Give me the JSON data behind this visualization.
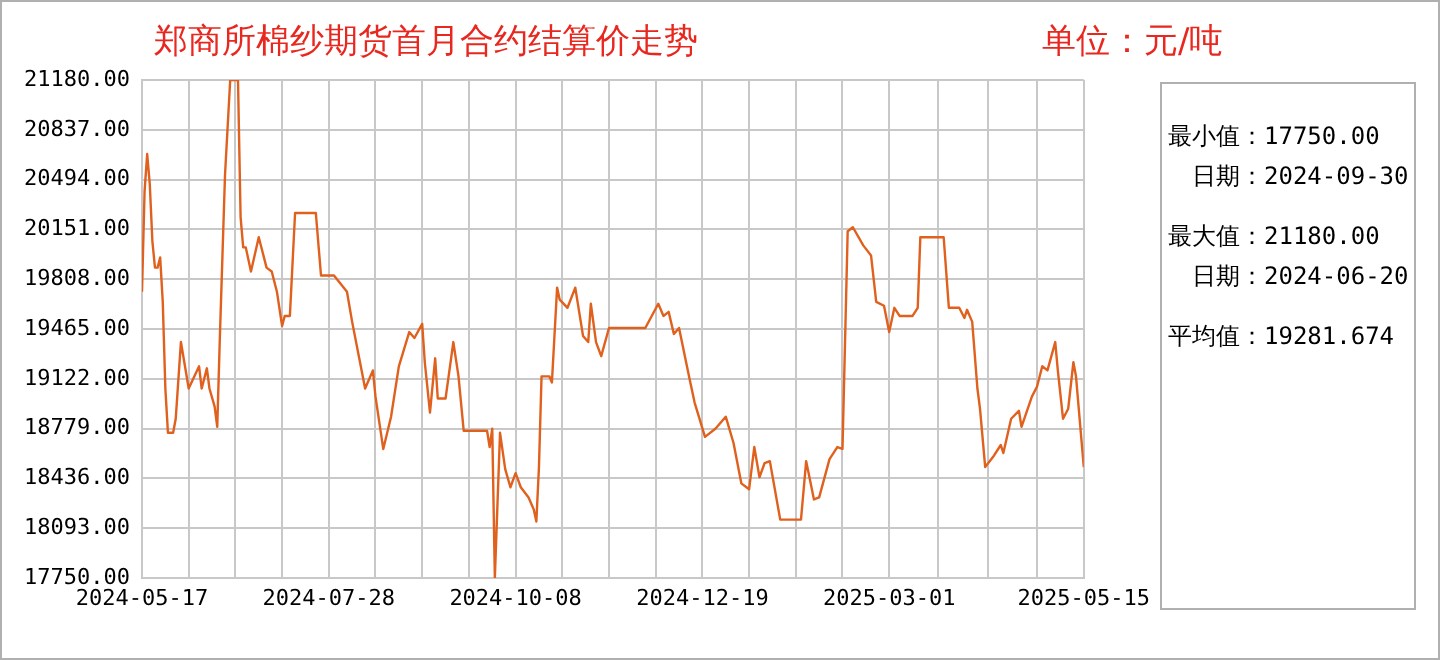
{
  "chart_data": {
    "type": "line",
    "title": "郑商所棉纱期货首月合约结算价走势",
    "subtitle": "单位：元/吨",
    "annotations": [
      "最小值：17750.00",
      "日期：2024-09-30",
      "最大值：21180.00",
      "日期：2024-06-20",
      "平均值：19281.674"
    ],
    "x": [
      "2024-05-17",
      "2024-05-18",
      "2024-05-19",
      "2024-05-20",
      "2024-05-21",
      "2024-05-22",
      "2024-05-23",
      "2024-05-24",
      "2024-05-25",
      "2024-05-26",
      "2024-05-27",
      "2024-05-29",
      "2024-05-30",
      "2024-06-01",
      "2024-06-04",
      "2024-06-08",
      "2024-06-09",
      "2024-06-11",
      "2024-06-12",
      "2024-06-14",
      "2024-06-15",
      "2024-06-16",
      "2024-06-18",
      "2024-06-20",
      "2024-06-23",
      "2024-06-24",
      "2024-06-25",
      "2024-06-26",
      "2024-06-28",
      "2024-07-01",
      "2024-07-03",
      "2024-07-04",
      "2024-07-06",
      "2024-07-08",
      "2024-07-10",
      "2024-07-11",
      "2024-07-13",
      "2024-07-15",
      "2024-07-23",
      "2024-07-25",
      "2024-07-30",
      "2024-08-04",
      "2024-08-06",
      "2024-08-11",
      "2024-08-14",
      "2024-08-15",
      "2024-08-18",
      "2024-08-21",
      "2024-08-24",
      "2024-08-28",
      "2024-08-30",
      "2024-09-02",
      "2024-09-03",
      "2024-09-05",
      "2024-09-07",
      "2024-09-08",
      "2024-09-11",
      "2024-09-14",
      "2024-09-16",
      "2024-09-18",
      "2024-09-27",
      "2024-09-28",
      "2024-09-29",
      "2024-09-30",
      "2024-10-02",
      "2024-10-04",
      "2024-10-06",
      "2024-10-08",
      "2024-10-10",
      "2024-10-13",
      "2024-10-15",
      "2024-10-16",
      "2024-10-17",
      "2024-10-18",
      "2024-10-21",
      "2024-10-22",
      "2024-10-24",
      "2024-10-25",
      "2024-10-28",
      "2024-10-31",
      "2024-11-03",
      "2024-11-05",
      "2024-11-06",
      "2024-11-08",
      "2024-11-10",
      "2024-11-13",
      "2024-11-27",
      "2024-12-02",
      "2024-12-04",
      "2024-12-06",
      "2024-12-08",
      "2024-12-10",
      "2024-12-14",
      "2024-12-16",
      "2024-12-20",
      "2024-12-24",
      "2024-12-28",
      "2024-12-31",
      "2025-01-03",
      "2025-01-06",
      "2025-01-08",
      "2025-01-10",
      "2025-01-12",
      "2025-01-14",
      "2025-01-18",
      "2025-01-26",
      "2025-01-28",
      "2025-01-31",
      "2025-02-02",
      "2025-02-06",
      "2025-02-09",
      "2025-02-11",
      "2025-02-13",
      "2025-02-15",
      "2025-02-19",
      "2025-02-22",
      "2025-02-24",
      "2025-02-27",
      "2025-03-01",
      "2025-03-03",
      "2025-03-05",
      "2025-03-10",
      "2025-03-12",
      "2025-03-13",
      "2025-03-22",
      "2025-03-24",
      "2025-03-28",
      "2025-03-30",
      "2025-03-31",
      "2025-04-02",
      "2025-04-04",
      "2025-04-05",
      "2025-04-07",
      "2025-04-10",
      "2025-04-13",
      "2025-04-14",
      "2025-04-17",
      "2025-04-20",
      "2025-04-21",
      "2025-04-25",
      "2025-04-27",
      "2025-04-29",
      "2025-05-01",
      "2025-05-04",
      "2025-05-05",
      "2025-05-07",
      "2025-05-09",
      "2025-05-11",
      "2025-05-12",
      "2025-05-14",
      "2025-05-15"
    ],
    "series": [
      {
        "color": "#e0601e",
        "values": [
          19722,
          20416,
          20670,
          20462,
          20069,
          19888,
          19888,
          19958,
          19652,
          19055,
          18750,
          18750,
          18847,
          19375,
          19055,
          19208,
          19055,
          19194,
          19055,
          18930,
          18791,
          19403,
          20527,
          21180,
          21180,
          20236,
          20027,
          20027,
          19861,
          20097,
          19958,
          19888,
          19861,
          19722,
          19486,
          19555,
          19555,
          20264,
          20264,
          19833,
          19833,
          19722,
          19514,
          19055,
          19180,
          18999,
          18638,
          18861,
          19208,
          19444,
          19403,
          19500,
          19236,
          18889,
          19263,
          18986,
          18986,
          19375,
          19139,
          18764,
          18764,
          18652,
          18778,
          17750,
          18750,
          18500,
          18375,
          18472,
          18375,
          18305,
          18222,
          18139,
          18514,
          19139,
          19139,
          19097,
          19750,
          19667,
          19611,
          19750,
          19417,
          19375,
          19639,
          19375,
          19278,
          19472,
          19472,
          19639,
          19555,
          19583,
          19430,
          19472,
          19125,
          18958,
          18722,
          18778,
          18861,
          18680,
          18402,
          18361,
          18652,
          18444,
          18542,
          18555,
          18152,
          18152,
          18555,
          18291,
          18305,
          18569,
          18652,
          18640,
          20138,
          20166,
          20041,
          19972,
          19652,
          19625,
          19444,
          19611,
          19555,
          19555,
          19611,
          20097,
          20097,
          19611,
          19611,
          19541,
          19597,
          19514,
          19055,
          18916,
          18514,
          18583,
          18666,
          18611,
          18847,
          18902,
          18791,
          18999,
          19069,
          19208,
          19180,
          19375,
          19180,
          18847,
          18916,
          19236,
          19139,
          18722,
          18514
        ]
      }
    ],
    "xlim": [
      "2024-05-17",
      "2025-05-15"
    ],
    "xticks": [
      "2024-05-17",
      {
        "value": "2024-06-04",
        "label": null
      },
      {
        "value": "2024-06-22",
        "label": null
      },
      {
        "value": "2024-07-10",
        "label": null
      },
      "2024-07-28",
      {
        "value": "2024-08-15",
        "label": null
      },
      {
        "value": "2024-09-02",
        "label": null
      },
      {
        "value": "2024-09-20",
        "label": null
      },
      "2024-10-08",
      {
        "value": "2024-10-26",
        "label": null
      },
      {
        "value": "2024-11-13",
        "label": null
      },
      {
        "value": "2024-12-01",
        "label": null
      },
      "2024-12-19",
      {
        "value": "2025-01-06",
        "label": null
      },
      {
        "value": "2025-01-24",
        "label": null
      },
      {
        "value": "2025-02-11",
        "label": null
      },
      "2025-03-01",
      {
        "value": "2025-03-20",
        "label": null
      },
      {
        "value": "2025-04-08",
        "label": null
      },
      {
        "value": "2025-04-27",
        "label": null
      },
      "2025-05-15"
    ],
    "ylim": [
      17750,
      21180
    ],
    "yticks": [
      {
        "value": 17750,
        "label": "17750.00"
      },
      {
        "value": 18093,
        "label": "18093.00"
      },
      {
        "value": 18436,
        "label": "18436.00"
      },
      {
        "value": 18779,
        "label": "18779.00"
      },
      {
        "value": 19122,
        "label": "19122.00"
      },
      {
        "value": 19465,
        "label": "19465.00"
      },
      {
        "value": 19808,
        "label": "19808.00"
      },
      {
        "value": 20151,
        "label": "20151.00"
      },
      {
        "value": 20494,
        "label": "20494.00"
      },
      {
        "value": 20837,
        "label": "20837.00"
      },
      {
        "value": 21180,
        "label": "21180.00"
      }
    ],
    "grid": true
  }
}
